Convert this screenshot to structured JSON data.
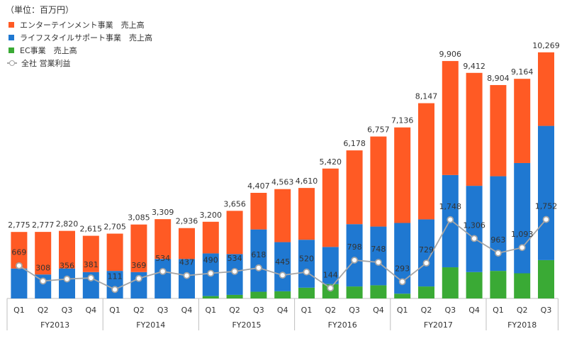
{
  "chart_data": {
    "type": "bar",
    "stacked": true,
    "unit_label": "（単位：百万円）",
    "quarters": [
      "Q1",
      "Q2",
      "Q3",
      "Q4",
      "Q1",
      "Q2",
      "Q3",
      "Q4",
      "Q1",
      "Q2",
      "Q3",
      "Q4",
      "Q1",
      "Q2",
      "Q3",
      "Q4",
      "Q1",
      "Q2",
      "Q3",
      "Q4",
      "Q1",
      "Q2",
      "Q3"
    ],
    "fiscal_years": [
      {
        "label": "FY2013",
        "count": 4
      },
      {
        "label": "FY2014",
        "count": 4
      },
      {
        "label": "FY2015",
        "count": 4
      },
      {
        "label": "FY2016",
        "count": 4
      },
      {
        "label": "FY2017",
        "count": 4
      },
      {
        "label": "FY2018",
        "count": 3
      }
    ],
    "series": [
      {
        "name": "EC事業　売上高",
        "color": "#3aaa35",
        "values": [
          0,
          0,
          0,
          0,
          0,
          0,
          0,
          0,
          100,
          150,
          280,
          300,
          450,
          600,
          500,
          550,
          200,
          500,
          1300,
          1100,
          1150,
          1050,
          1600
        ]
      },
      {
        "name": "ライフスタイルサポート事業　売上高",
        "color": "#1f78d1",
        "values": [
          1250,
          1000,
          1250,
          1100,
          1150,
          1100,
          1650,
          1650,
          1780,
          1700,
          2600,
          2050,
          2000,
          1550,
          2600,
          2450,
          2950,
          2800,
          3850,
          3600,
          3950,
          4600,
          5600
        ]
      },
      {
        "name": "エンターテインメント事業　売上高",
        "color": "#ff5a24",
        "values": [
          1525,
          1777,
          1570,
          1515,
          1555,
          1985,
          1659,
          1286,
          1320,
          1806,
          1527,
          2213,
          2160,
          3270,
          3078,
          3757,
          3986,
          4847,
          4756,
          4712,
          3804,
          3514,
          3069
        ]
      }
    ],
    "totals": [
      2775,
      2777,
      2820,
      2615,
      2705,
      3085,
      3309,
      2936,
      3200,
      3656,
      4407,
      4563,
      4610,
      5420,
      6178,
      6757,
      7136,
      8147,
      9906,
      9412,
      8904,
      9164,
      10269
    ],
    "totals_display": [
      "2,775",
      "2,777",
      "2,820",
      "2,615",
      "2,705",
      "3,085",
      "3,309",
      "2,936",
      "3,200",
      "3,656",
      "4,407",
      "4,563",
      "4,610",
      "5,420",
      "6,178",
      "6,757",
      "7,136",
      "8,147",
      "9,906",
      "9,412",
      "8,904",
      "9,164",
      "10,269"
    ],
    "line_series": {
      "name": "全社 営業利益",
      "color": "#a6a6a6",
      "values": [
        669,
        308,
        356,
        381,
        111,
        369,
        534,
        437,
        490,
        534,
        618,
        445,
        520,
        144,
        798,
        748,
        293,
        729,
        1748,
        1306,
        963,
        1093,
        1752
      ],
      "labels": [
        "669",
        "308",
        "356",
        "381",
        "111",
        "369",
        "534",
        "437",
        "490",
        "534",
        "618",
        "445",
        "520",
        "144",
        "798",
        "748",
        "293",
        "729",
        "1,748",
        "1,306",
        "963",
        "1,093",
        "1,752"
      ]
    },
    "ylim_bars": [
      0,
      10500
    ],
    "ylim_line": [
      -100,
      5800
    ],
    "legend_position": "top-left"
  }
}
